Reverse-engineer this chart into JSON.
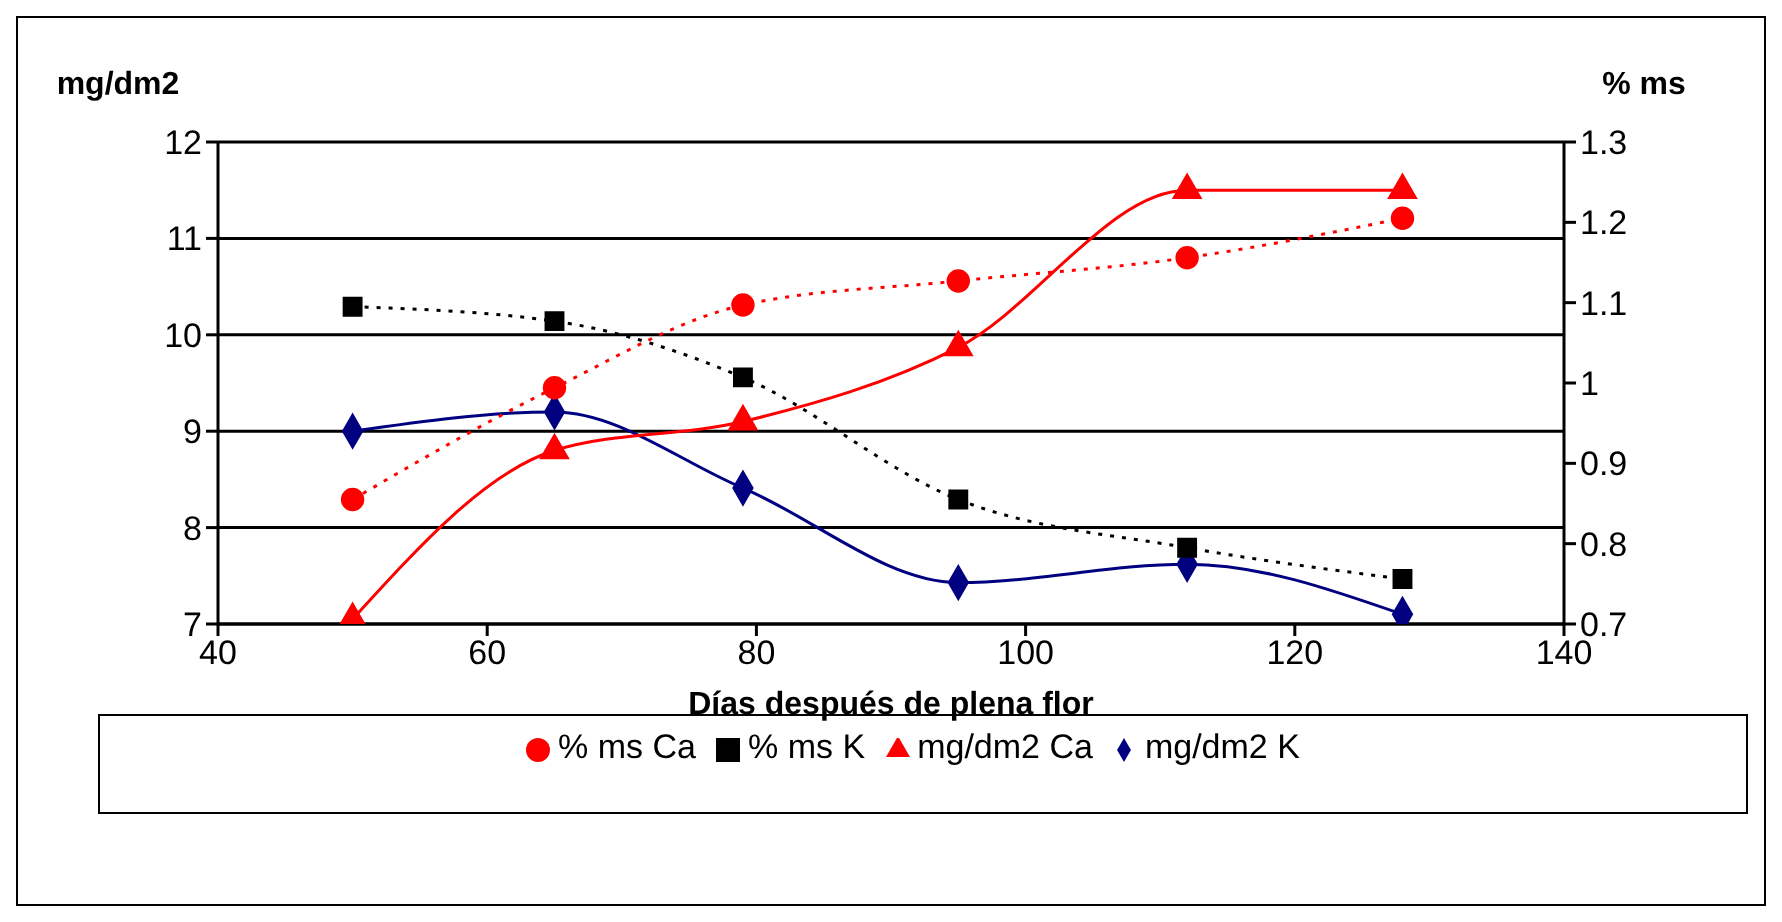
{
  "chart_data": {
    "type": "line",
    "xlabel": "Días después de plena flor",
    "ylabel": "mg/dm2",
    "y2label": "% ms",
    "x": [
      50,
      65,
      79,
      95,
      112,
      128
    ],
    "series": [
      {
        "name": "mg/dm2 K",
        "color": "#000080",
        "marker": "diamond",
        "line_style": "solid",
        "axis": "y",
        "values": [
          9.0,
          9.2,
          8.41,
          7.43,
          7.62,
          7.1
        ]
      },
      {
        "name": "mg/dm2 Ca",
        "color": "#ff0000",
        "marker": "triangle",
        "line_style": "solid",
        "axis": "y",
        "values": [
          7.05,
          8.8,
          9.1,
          9.87,
          11.5,
          11.5
        ]
      },
      {
        "name": "% ms K",
        "color": "#000000",
        "marker": "square",
        "line_style": "dotted",
        "axis": "y2",
        "values": [
          1.095,
          1.077,
          1.007,
          0.855,
          0.795,
          0.756
        ]
      },
      {
        "name": "% ms Ca",
        "color": "#ff0000",
        "marker": "circle",
        "line_style": "dotted",
        "axis": "y2",
        "values": [
          0.855,
          0.994,
          1.097,
          1.127,
          1.156,
          1.205
        ]
      }
    ],
    "xlim": [
      40,
      140
    ],
    "xticks": [
      40,
      60,
      80,
      100,
      120,
      140
    ],
    "ylim": [
      7,
      12
    ],
    "yticks": [
      7,
      8,
      9,
      10,
      11,
      12
    ],
    "y2lim": [
      0.7,
      1.3
    ],
    "y2ticks": [
      0.7,
      0.8,
      0.9,
      1,
      1.1,
      1.2,
      1.3
    ],
    "grid": "y",
    "legend": "bottom"
  }
}
